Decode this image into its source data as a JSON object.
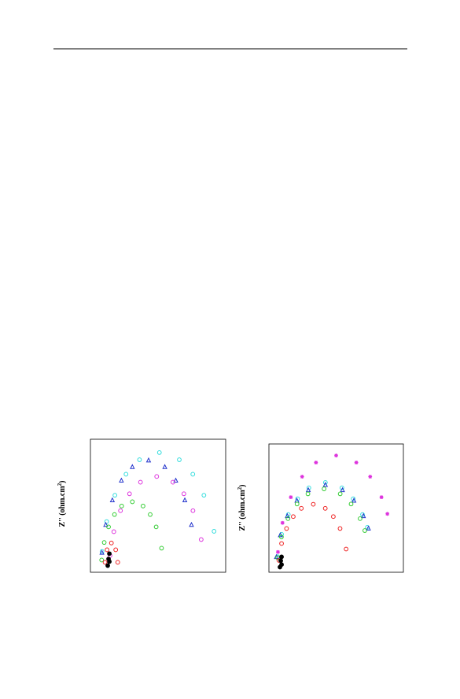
{
  "chart_data": [
    {
      "type": "scatter",
      "y_label_parts": [
        "Z'' (ohm.cm",
        "2",
        ")"
      ],
      "xlim": [
        0,
        10
      ],
      "ylim": [
        0,
        10
      ],
      "series": [
        {
          "color": "#33dddd",
          "marker": "circle",
          "x": [
            0.86,
            1.2,
            1.81,
            2.63,
            3.63,
            5.1,
            6.57,
            7.57,
            8.39,
            9.14
          ],
          "values": [
            1.57,
            3.81,
            5.79,
            7.37,
            8.46,
            9.0,
            8.46,
            7.37,
            5.79,
            3.08
          ]
        },
        {
          "color": "#2233cc",
          "marker": "triangle",
          "x": [
            0.85,
            1.13,
            1.62,
            2.29,
            3.1,
            4.3,
            5.5,
            6.31,
            6.98,
            7.47
          ],
          "values": [
            1.46,
            3.55,
            5.4,
            6.88,
            7.9,
            8.4,
            7.9,
            6.88,
            5.4,
            3.55
          ]
        },
        {
          "color": "#dd33dd",
          "marker": "circle",
          "x": [
            1.45,
            1.73,
            2.22,
            2.89,
            3.7,
            4.9,
            6.1,
            6.91,
            7.58,
            8.19
          ],
          "values": [
            1.25,
            3.05,
            4.63,
            5.9,
            6.77,
            7.2,
            6.77,
            5.9,
            4.63,
            2.46
          ]
        },
        {
          "color": "#33cc33",
          "marker": "circle",
          "x": [
            0.83,
            1.02,
            1.34,
            1.78,
            2.31,
            3.1,
            3.89,
            4.42,
            4.86,
            5.26
          ],
          "values": [
            0.92,
            2.24,
            3.41,
            4.34,
            4.98,
            5.3,
            4.98,
            4.34,
            3.41,
            1.81
          ]
        },
        {
          "color": "#ee2222",
          "marker": "circle",
          "x": [
            1.08,
            1.23,
            1.55,
            1.87,
            2.02
          ],
          "values": [
            0.75,
            1.69,
            2.2,
            1.69,
            0.75
          ]
        },
        {
          "color": "#000000",
          "marker": "filled",
          "x": [
            1.28,
            1.34,
            1.4,
            1.4
          ],
          "values": [
            0.5,
            1.0,
            1.4,
            0.8
          ]
        }
      ]
    },
    {
      "type": "scatter",
      "y_label_parts": [
        "Z'' (ohm.cm",
        "2",
        ")"
      ],
      "xlim": [
        0,
        10
      ],
      "ylim": [
        0,
        10
      ],
      "series": [
        {
          "color": "#dd33dd",
          "marker": "cross",
          "x": [
            0.67,
            1.01,
            1.63,
            2.47,
            3.5,
            5.0,
            6.5,
            7.53,
            8.37,
            8.81
          ],
          "values": [
            1.58,
            3.85,
            5.85,
            7.45,
            8.55,
            9.1,
            8.55,
            7.45,
            5.85,
            4.55
          ]
        },
        {
          "color": "#33dddd",
          "marker": "circle",
          "x": [
            0.65,
            0.94,
            1.44,
            2.13,
            2.97,
            4.2,
            5.43,
            6.27,
            6.96,
            7.32
          ],
          "values": [
            1.22,
            2.96,
            4.5,
            5.73,
            6.58,
            7.0,
            6.58,
            5.73,
            4.5,
            3.5
          ]
        },
        {
          "color": "#2233cc",
          "marker": "triangle",
          "x": [
            0.56,
            0.85,
            1.37,
            2.08,
            2.93,
            4.2,
            5.47,
            6.32,
            7.03,
            7.4
          ],
          "values": [
            1.18,
            2.88,
            4.37,
            5.57,
            6.39,
            6.8,
            6.39,
            5.57,
            4.37,
            3.4
          ]
        },
        {
          "color": "#33cc33",
          "marker": "circle",
          "x": [
            0.65,
            0.93,
            1.42,
            2.09,
            2.9,
            4.1,
            5.3,
            6.11,
            6.78,
            7.13
          ],
          "values": [
            1.13,
            2.75,
            4.18,
            5.32,
            6.11,
            6.5,
            6.11,
            5.32,
            4.18,
            3.25
          ]
        },
        {
          "color": "#ee2222",
          "marker": "circle",
          "x": [
            0.74,
            0.94,
            1.31,
            1.81,
            2.41,
            3.3,
            4.19,
            4.79,
            5.29,
            5.74
          ],
          "values": [
            0.92,
            2.24,
            3.41,
            4.34,
            4.98,
            5.3,
            4.98,
            4.34,
            3.41,
            1.81
          ]
        },
        {
          "color": "#000000",
          "marker": "filled",
          "x": [
            0.82,
            0.88,
            0.94,
            0.94
          ],
          "values": [
            0.4,
            0.9,
            1.2,
            0.6
          ]
        }
      ]
    }
  ]
}
